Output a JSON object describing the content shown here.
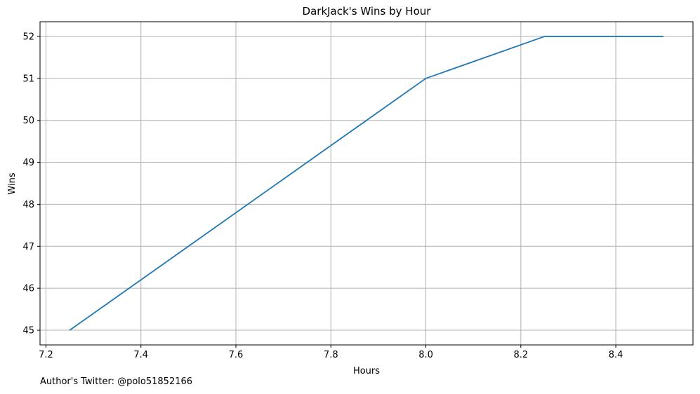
{
  "chart_data": {
    "type": "line",
    "title": "DarkJack's Wins by Hour",
    "xlabel": "Hours",
    "ylabel": "Wins",
    "x": [
      7.25,
      8.0,
      8.25,
      8.5
    ],
    "series": [
      {
        "values": [
          45,
          51,
          52,
          52
        ],
        "color": "#1f77b4"
      }
    ],
    "xlim": [
      7.1875,
      8.5625
    ],
    "ylim": [
      44.65,
      52.35
    ],
    "xticks": [
      "7.2",
      "7.4",
      "7.6",
      "7.8",
      "8.0",
      "8.2",
      "8.4"
    ],
    "yticks": [
      "45",
      "46",
      "47",
      "48",
      "49",
      "50",
      "51",
      "52"
    ],
    "grid": true
  },
  "footer": {
    "text": "Author's Twitter: @polo51852166"
  }
}
